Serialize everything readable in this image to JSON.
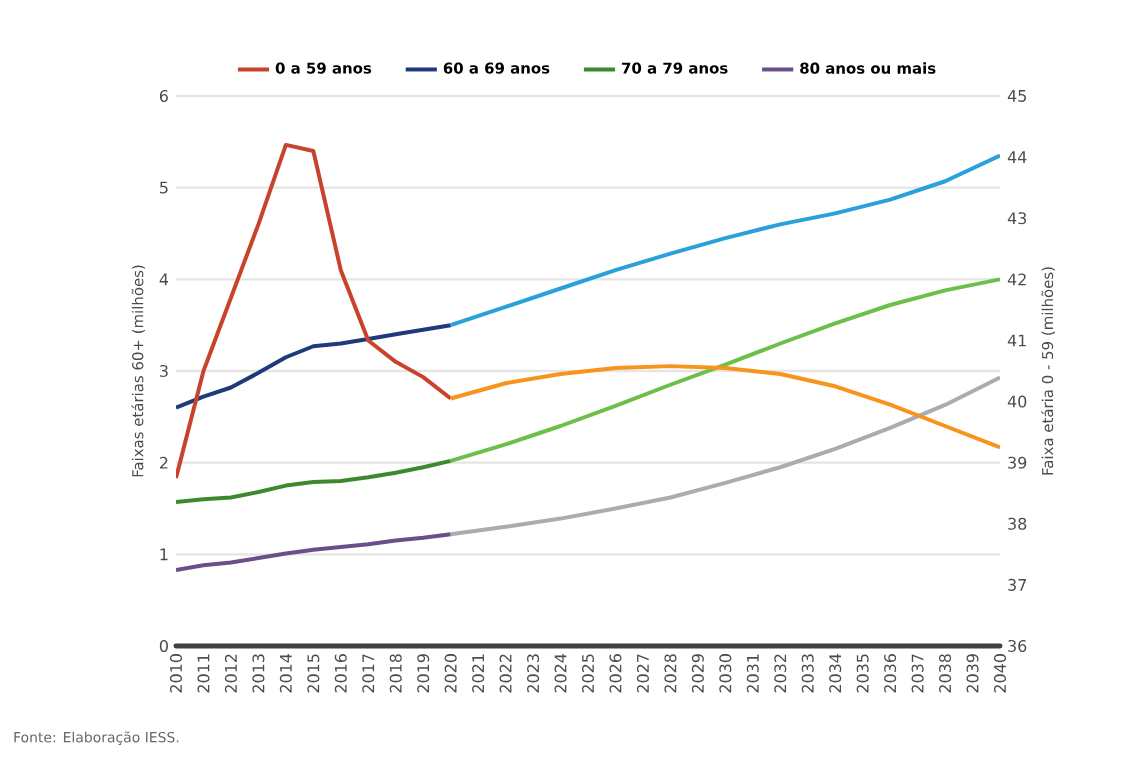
{
  "chart_data": {
    "type": "line",
    "ylabel": "Faixas etárias 60+ (milhões)",
    "y2label": "Faixa etária 0 - 59 (milhões)",
    "xlim": [
      2010,
      2040
    ],
    "xticks": [
      2010,
      2011,
      2012,
      2013,
      2014,
      2015,
      2016,
      2017,
      2018,
      2019,
      2020,
      2021,
      2022,
      2023,
      2024,
      2025,
      2026,
      2027,
      2028,
      2029,
      2030,
      2031,
      2032,
      2033,
      2034,
      2035,
      2036,
      2037,
      2038,
      2039,
      2040
    ],
    "ylim": [
      0,
      6
    ],
    "yticks": [
      0,
      1,
      2,
      3,
      4,
      5,
      6
    ],
    "y2lim": [
      36,
      45
    ],
    "y2ticks": [
      36,
      37,
      38,
      39,
      40,
      41,
      42,
      43,
      44,
      45
    ],
    "grid": "y",
    "legend": "top",
    "marker": "none",
    "line_style": "solid",
    "series": [
      {
        "name": "0 a 59 anos",
        "color": "#c8432b",
        "axis": "y2",
        "x": [
          2010,
          2011,
          2012,
          2013,
          2014,
          2015,
          2016,
          2017,
          2018,
          2019,
          2020
        ],
        "values": [
          38.75,
          40.5,
          41.7,
          42.9,
          44.2,
          44.1,
          42.15,
          41.0,
          40.65,
          40.4,
          40.05
        ]
      },
      {
        "name": "60 a 69 anos",
        "color": "#1f3a7a",
        "x": [
          2010,
          2011,
          2012,
          2013,
          2014,
          2015,
          2016,
          2017,
          2018,
          2019,
          2020
        ],
        "values": [
          2.6,
          2.72,
          2.82,
          2.98,
          3.15,
          3.27,
          3.3,
          3.35,
          3.4,
          3.45,
          3.5
        ]
      },
      {
        "name": "70 a 79 anos",
        "color": "#3d8a2e",
        "x": [
          2010,
          2011,
          2012,
          2013,
          2014,
          2015,
          2016,
          2017,
          2018,
          2019,
          2020
        ],
        "values": [
          1.57,
          1.6,
          1.62,
          1.68,
          1.75,
          1.79,
          1.8,
          1.84,
          1.89,
          1.95,
          2.02
        ]
      },
      {
        "name": "80 anos ou mais",
        "color": "#6b4f8a",
        "x": [
          2010,
          2011,
          2012,
          2013,
          2014,
          2015,
          2016,
          2017,
          2018,
          2019,
          2020
        ],
        "values": [
          0.83,
          0.88,
          0.91,
          0.96,
          1.01,
          1.05,
          1.08,
          1.11,
          1.15,
          1.18,
          1.22
        ]
      },
      {
        "color": "#f7941d",
        "axis": "y2",
        "x": [
          2020,
          2022,
          2024,
          2026,
          2028,
          2030,
          2032,
          2034,
          2036,
          2038,
          2040
        ],
        "values": [
          40.05,
          40.3,
          40.45,
          40.55,
          40.58,
          40.55,
          40.45,
          40.25,
          39.95,
          39.6,
          39.25
        ]
      },
      {
        "color": "#2aa0dc",
        "x": [
          2020,
          2022,
          2024,
          2026,
          2028,
          2030,
          2032,
          2034,
          2036,
          2038,
          2040
        ],
        "values": [
          3.5,
          3.7,
          3.9,
          4.1,
          4.28,
          4.45,
          4.6,
          4.72,
          4.87,
          5.07,
          5.35
        ]
      },
      {
        "color": "#6cc04a",
        "x": [
          2020,
          2022,
          2024,
          2026,
          2028,
          2030,
          2032,
          2034,
          2036,
          2038,
          2040
        ],
        "values": [
          2.02,
          2.2,
          2.4,
          2.62,
          2.85,
          3.07,
          3.3,
          3.52,
          3.72,
          3.88,
          4.0
        ]
      },
      {
        "color": "#a7adb0",
        "x": [
          2020,
          2022,
          2024,
          2026,
          2028,
          2030,
          2032,
          2034,
          2036,
          2038,
          2040
        ],
        "values": [
          1.22,
          1.3,
          1.39,
          1.5,
          1.62,
          1.78,
          1.95,
          2.15,
          2.38,
          2.63,
          2.93
        ]
      }
    ],
    "annotations": [
      "Fonte: Elaboração IESS."
    ]
  }
}
